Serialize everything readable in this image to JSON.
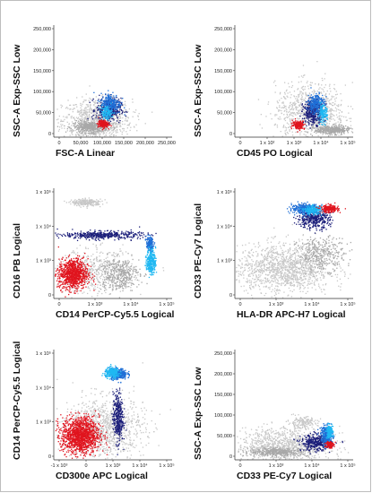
{
  "colors": {
    "background_events": "#c8c8c8",
    "gate_gray": "#a8a8a8",
    "red": "#e0141e",
    "dark_blue": "#1c1f7a",
    "mid_blue": "#1f6fd6",
    "light_blue": "#20b8f2",
    "bright_red_cluster": "#e8242a"
  },
  "chart_data": [
    {
      "type": "scatter",
      "xlabel": "FSC-A Linear",
      "ylabel": "SSC-A Exp-SSC Low",
      "x_ticks": [
        "0",
        "50,000",
        "100,000",
        "150,000",
        "200,000",
        "250,000"
      ],
      "y_ticks": [
        "250,000",
        "200,000",
        "150,000",
        "100,000",
        "50,000",
        "0"
      ],
      "xlim": [
        0,
        262144
      ],
      "ylim": [
        0,
        262144
      ],
      "populations": [
        {
          "color": "background_events",
          "center": [
            95000,
            40000
          ],
          "spread": [
            70000,
            45000
          ],
          "n": 900
        },
        {
          "color": "gate_gray",
          "center": [
            80000,
            25000
          ],
          "spread": [
            35000,
            12000
          ],
          "n": 400
        },
        {
          "color": "dark_blue",
          "center": [
            120000,
            65000
          ],
          "spread": [
            25000,
            25000
          ],
          "n": 350
        },
        {
          "color": "mid_blue",
          "center": [
            125000,
            80000
          ],
          "spread": [
            20000,
            22000
          ],
          "n": 250
        },
        {
          "color": "light_blue",
          "center": [
            115000,
            58000
          ],
          "spread": [
            12000,
            15000
          ],
          "n": 120
        },
        {
          "color": "red",
          "center": [
            108000,
            32000
          ],
          "spread": [
            10000,
            8000
          ],
          "n": 180
        }
      ]
    },
    {
      "type": "scatter",
      "xlabel": "CD45 PO Logical",
      "ylabel": "SSC-A Exp-SSC Low",
      "x_ticks": [
        "0",
        "1 x 10²",
        "1 x 10³",
        "1 x 10⁴",
        "1 x 10⁵"
      ],
      "y_ticks": [
        "250,000",
        "200,000",
        "150,000",
        "100,000",
        "50,000",
        "0"
      ],
      "xlim": [
        0,
        4.4
      ],
      "ylim": [
        0,
        262144
      ],
      "populations": [
        {
          "color": "background_events",
          "center": [
            2.8,
            60000
          ],
          "spread": [
            1.2,
            60000
          ],
          "n": 900
        },
        {
          "color": "gate_gray",
          "center": [
            3.6,
            18000
          ],
          "spread": [
            0.6,
            9000
          ],
          "n": 400
        },
        {
          "color": "dark_blue",
          "center": [
            2.9,
            60000
          ],
          "spread": [
            0.35,
            25000
          ],
          "n": 350
        },
        {
          "color": "mid_blue",
          "center": [
            3.0,
            80000
          ],
          "spread": [
            0.28,
            22000
          ],
          "n": 250
        },
        {
          "color": "light_blue",
          "center": [
            3.25,
            55000
          ],
          "spread": [
            0.15,
            18000
          ],
          "n": 150
        },
        {
          "color": "red",
          "center": [
            2.35,
            30000
          ],
          "spread": [
            0.2,
            9000
          ],
          "n": 170
        }
      ]
    },
    {
      "type": "scatter",
      "xlabel": "CD14 PerCP-Cy5.5 Logical",
      "ylabel": "CD16 PB Logical",
      "x_ticks": [
        "0",
        "1 x 10³",
        "1 x 10⁴",
        "1 x 10⁵"
      ],
      "y_ticks": [
        "1 x 10⁵",
        "1 x 10⁴",
        "1 x 10³",
        "0"
      ],
      "xlim": [
        0,
        4.4
      ],
      "ylim": [
        0,
        4.4
      ],
      "populations": [
        {
          "color": "background_events",
          "center": [
            1.2,
            3.85
          ],
          "spread": [
            0.5,
            0.12
          ],
          "n": 250
        },
        {
          "color": "background_events",
          "center": [
            1.5,
            1.1
          ],
          "spread": [
            1.3,
            0.8
          ],
          "n": 500
        },
        {
          "color": "gate_gray",
          "center": [
            2.4,
            1.0
          ],
          "spread": [
            0.7,
            0.6
          ],
          "n": 400
        },
        {
          "color": "dark_blue",
          "center": [
            1.8,
            2.55
          ],
          "spread": [
            1.3,
            0.14
          ],
          "n": 450
        },
        {
          "color": "mid_blue",
          "center": [
            3.55,
            2.2
          ],
          "spread": [
            0.12,
            0.25
          ],
          "n": 160
        },
        {
          "color": "light_blue",
          "center": [
            3.6,
            1.5
          ],
          "spread": [
            0.15,
            0.45
          ],
          "n": 300
        },
        {
          "color": "red",
          "center": [
            0.7,
            1.0
          ],
          "spread": [
            0.5,
            0.55
          ],
          "n": 900
        }
      ]
    },
    {
      "type": "scatter",
      "xlabel": "HLA-DR APC-H7 Logical",
      "ylabel": "CD33 PE-Cy7 Logical",
      "x_ticks": [
        "0",
        "1 x 10³",
        "1 x 10⁴",
        "1 x 10⁵"
      ],
      "y_ticks": [
        "1 x 10⁵",
        "1 x 10⁴",
        "1 x 10³",
        "0"
      ],
      "xlim": [
        0,
        4.4
      ],
      "ylim": [
        0,
        4.4
      ],
      "populations": [
        {
          "color": "background_events",
          "center": [
            1.8,
            1.2
          ],
          "spread": [
            1.6,
            0.9
          ],
          "n": 1300
        },
        {
          "color": "gate_gray",
          "center": [
            3.2,
            1.8
          ],
          "spread": [
            0.8,
            0.6
          ],
          "n": 350
        },
        {
          "color": "dark_blue",
          "center": [
            2.9,
            3.2
          ],
          "spread": [
            0.55,
            0.35
          ],
          "n": 400
        },
        {
          "color": "mid_blue",
          "center": [
            2.6,
            3.6
          ],
          "spread": [
            0.45,
            0.18
          ],
          "n": 350
        },
        {
          "color": "light_blue",
          "center": [
            2.9,
            3.55
          ],
          "spread": [
            0.3,
            0.15
          ],
          "n": 200
        },
        {
          "color": "red",
          "center": [
            3.5,
            3.6
          ],
          "spread": [
            0.3,
            0.13
          ],
          "n": 230
        }
      ]
    },
    {
      "type": "scatter",
      "xlabel": "CD300e APC Logical",
      "ylabel": "CD14 PerCP-Cy5.5 Logical",
      "x_ticks": [
        "-1 x 10³",
        "0",
        "1 x 10³",
        "1 x 10⁴",
        "1 x 10⁵"
      ],
      "y_ticks": [
        "1 x 10⁵",
        "1 x 10⁴",
        "1 x 10³",
        "0"
      ],
      "xlim": [
        -0.8,
        4.4
      ],
      "ylim": [
        0,
        4.4
      ],
      "populations": [
        {
          "color": "background_events",
          "center": [
            1.4,
            1.3
          ],
          "spread": [
            1.6,
            1.1
          ],
          "n": 1000
        },
        {
          "color": "red",
          "center": [
            0.35,
            1.0
          ],
          "spread": [
            0.75,
            0.65
          ],
          "n": 1300
        },
        {
          "color": "dark_blue",
          "center": [
            2.0,
            1.7
          ],
          "spread": [
            0.2,
            0.9
          ],
          "n": 380
        },
        {
          "color": "mid_blue",
          "center": [
            2.0,
            3.45
          ],
          "spread": [
            0.35,
            0.2
          ],
          "n": 330
        },
        {
          "color": "light_blue",
          "center": [
            1.75,
            3.5
          ],
          "spread": [
            0.3,
            0.18
          ],
          "n": 260
        }
      ]
    },
    {
      "type": "scatter",
      "xlabel": "CD33 PE-Cy7 Logical",
      "ylabel": "SSC-A Exp-SSC Low",
      "x_ticks": [
        "0",
        "1 x 10³",
        "1 x 10⁴",
        "1 x 10⁵"
      ],
      "y_ticks": [
        "250,000",
        "200,000",
        "150,000",
        "100,000",
        "50,000",
        "0"
      ],
      "xlim": [
        0,
        4.4
      ],
      "ylim": [
        0,
        262144
      ],
      "populations": [
        {
          "color": "background_events",
          "center": [
            1.8,
            35000
          ],
          "spread": [
            1.6,
            40000
          ],
          "n": 1000
        },
        {
          "color": "background_events",
          "center": [
            2.5,
            90000
          ],
          "spread": [
            0.5,
            12000
          ],
          "n": 150
        },
        {
          "color": "gate_gray",
          "center": [
            1.6,
            20000
          ],
          "spread": [
            1.0,
            9000
          ],
          "n": 400
        },
        {
          "color": "dark_blue",
          "center": [
            3.0,
            42000
          ],
          "spread": [
            0.5,
            17000
          ],
          "n": 380
        },
        {
          "color": "mid_blue",
          "center": [
            3.4,
            60000
          ],
          "spread": [
            0.2,
            20000
          ],
          "n": 300
        },
        {
          "color": "light_blue",
          "center": [
            3.5,
            68000
          ],
          "spread": [
            0.12,
            14000
          ],
          "n": 150
        },
        {
          "color": "red",
          "center": [
            3.5,
            38000
          ],
          "spread": [
            0.12,
            8000
          ],
          "n": 140
        }
      ]
    }
  ]
}
